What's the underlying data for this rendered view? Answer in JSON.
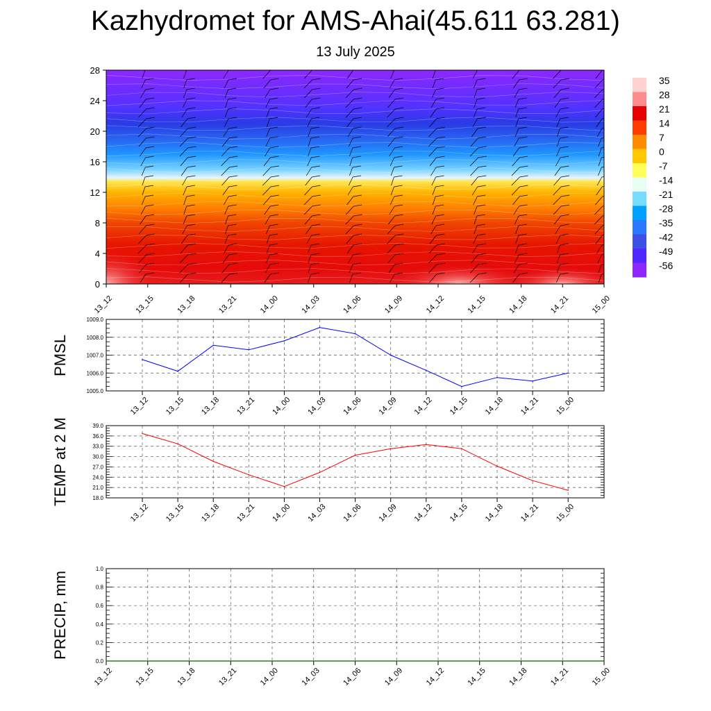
{
  "header": {
    "title": "Kazhydromet for AMS-Ahai(45.611 63.281)",
    "subtitle": "13 July 2025"
  },
  "chart_data": [
    {
      "type": "heatmap",
      "name": "cross-section",
      "ylim": [
        0,
        28
      ],
      "yticks": [
        "0",
        "4",
        "8",
        "12",
        "16",
        "20",
        "24",
        "28"
      ],
      "categories": [
        "13_12",
        "13_15",
        "13_18",
        "13_21",
        "14_00",
        "14_03",
        "14_06",
        "14_09",
        "14_12",
        "14_15",
        "14_18",
        "14_21",
        "15_00"
      ],
      "colorbar": {
        "labels": [
          "35",
          "28",
          "21",
          "14",
          "7",
          "0",
          "-7",
          "-14",
          "-21",
          "-28",
          "-35",
          "-42",
          "-49",
          "-56"
        ],
        "colors": [
          "#ffd2d2",
          "#ff8c8c",
          "#e60000",
          "#ff3c00",
          "#ff8c00",
          "#ffc800",
          "#ffff5a",
          "#e6fff5",
          "#78dcff",
          "#00a0ff",
          "#2878ff",
          "#3c50e6",
          "#5028ff",
          "#8c28ff"
        ]
      },
      "levels": [
        {
          "y": 0,
          "color": "#e61e1e"
        },
        {
          "y": 2,
          "color": "#e60a0a"
        },
        {
          "y": 5,
          "color": "#e61400"
        },
        {
          "y": 8,
          "color": "#f04600"
        },
        {
          "y": 10,
          "color": "#ff8200"
        },
        {
          "y": 12,
          "color": "#ffb400"
        },
        {
          "y": 13.4,
          "color": "#ffe650"
        },
        {
          "y": 13.9,
          "color": "#e6f5ff"
        },
        {
          "y": 15,
          "color": "#78d2ff"
        },
        {
          "y": 17,
          "color": "#1e96ff"
        },
        {
          "y": 19,
          "color": "#2864f0"
        },
        {
          "y": 21,
          "color": "#283ce6"
        },
        {
          "y": 23,
          "color": "#5032ff"
        },
        {
          "y": 28,
          "color": "#8c28ff"
        }
      ],
      "hotspots": [
        {
          "x": 0,
          "y": 0,
          "rx": 1.2,
          "ry": 4.5
        },
        {
          "x": 8.5,
          "y": 0,
          "rx": 1.6,
          "ry": 2.6
        },
        {
          "x": 11,
          "y": 0,
          "rx": 1.3,
          "ry": 2.2
        }
      ]
    },
    {
      "type": "line",
      "name": "pmsl",
      "ylabel": "PMSL",
      "ylim": [
        1005.0,
        1009.0
      ],
      "yticks": [
        "1005.0",
        "1006.0",
        "1007.0",
        "1008.0",
        "1009.0"
      ],
      "categories": [
        "13_12",
        "13_15",
        "13_18",
        "13_21",
        "14_00",
        "14_03",
        "14_06",
        "14_09",
        "14_12",
        "14_15",
        "14_18",
        "14_21",
        "15_00"
      ],
      "values": [
        1006.75,
        1006.1,
        1007.55,
        1007.3,
        1007.8,
        1008.55,
        1008.2,
        1007.0,
        1006.15,
        1005.25,
        1005.75,
        1005.55,
        1006.0
      ],
      "color": "#0000ff",
      "grid": true
    },
    {
      "type": "line",
      "name": "temp",
      "ylabel": "TEMP at 2 M",
      "ylim": [
        18.0,
        39.0
      ],
      "yticks": [
        "18.0",
        "21.0",
        "24.0",
        "27.0",
        "30.0",
        "33.0",
        "36.0",
        "39.0"
      ],
      "categories": [
        "13_12",
        "13_15",
        "13_18",
        "13_21",
        "14_00",
        "14_03",
        "14_06",
        "14_09",
        "14_12",
        "14_15",
        "14_18",
        "14_21",
        "15_00"
      ],
      "values": [
        36.7,
        33.7,
        28.6,
        24.7,
        21.3,
        25.4,
        30.4,
        32.3,
        33.5,
        32.3,
        27.2,
        23.0,
        20.2
      ],
      "color": "#ff0000",
      "grid": true
    },
    {
      "type": "line",
      "name": "precip",
      "ylabel": "PRECIP, mm",
      "ylim": [
        0.0,
        1.0
      ],
      "yticks": [
        "0.0",
        "0.2",
        "0.4",
        "0.6",
        "0.8",
        "1.0"
      ],
      "categories": [
        "13_12",
        "13_15",
        "13_18",
        "13_21",
        "14_00",
        "14_03",
        "14_06",
        "14_09",
        "14_12",
        "14_15",
        "14_18",
        "14_21",
        "15_00"
      ],
      "values": [
        0,
        0,
        0,
        0,
        0,
        0,
        0,
        0,
        0,
        0,
        0,
        0,
        0
      ],
      "color": "#006400",
      "grid": true
    }
  ]
}
